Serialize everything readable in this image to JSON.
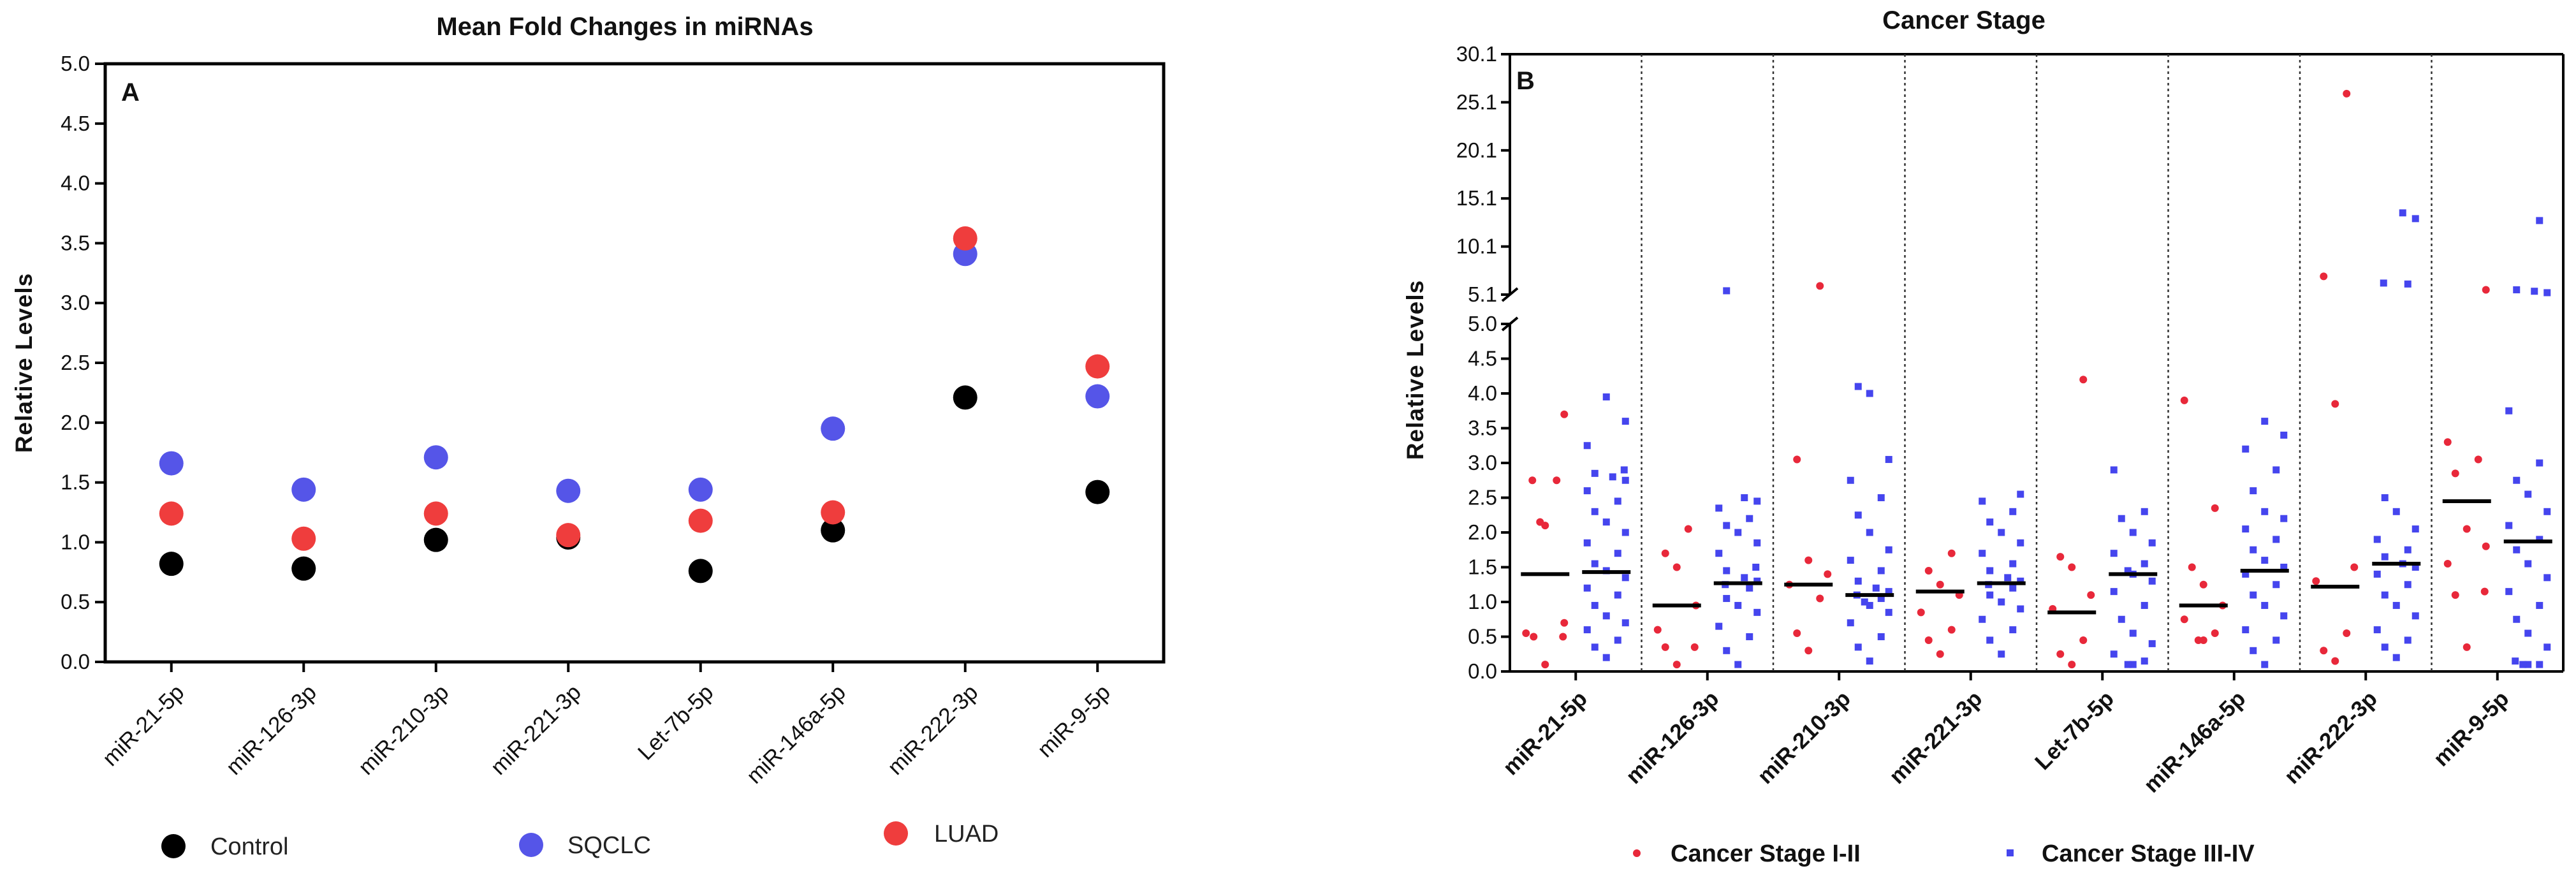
{
  "chart_data": [
    {
      "type": "scatter",
      "panel_label": "A",
      "title": "Mean Fold Changes in miRNAs",
      "ylabel": "Relative  Levels",
      "xlabel": "",
      "ylim": [
        0,
        5
      ],
      "yticks": [
        "0.0",
        "0.5",
        "1.0",
        "1.5",
        "2.0",
        "2.5",
        "3.0",
        "3.5",
        "4.0",
        "4.5",
        "5.0"
      ],
      "categories": [
        "miR-21-5p",
        "miR-126-3p",
        "miR-210-3p",
        "miR-221-3p",
        "Let-7b-5p",
        "miR-146a-5p",
        "miR-222-3p",
        "miR-9-5p"
      ],
      "series": [
        {
          "name": "Control",
          "color": "#000000",
          "values": [
            0.82,
            0.78,
            1.02,
            1.04,
            0.76,
            1.1,
            2.21,
            1.42
          ]
        },
        {
          "name": "SQCLC",
          "color": "#5555e8",
          "values": [
            1.66,
            1.44,
            1.71,
            1.43,
            1.44,
            1.95,
            3.41,
            2.22
          ]
        },
        {
          "name": "LUAD",
          "color": "#ef3d3d",
          "values": [
            1.24,
            1.03,
            1.24,
            1.06,
            1.18,
            1.25,
            3.54,
            2.47
          ]
        }
      ],
      "legend": [
        "Control",
        "SQCLC",
        "LUAD"
      ],
      "legend_placement": "bottom"
    },
    {
      "type": "scatter",
      "panel_label": "B",
      "title": "Cancer Stage",
      "ylabel": "Relative  Levels",
      "xlabel": "",
      "ylim_lower": [
        0,
        5
      ],
      "ylim_upper": [
        5.1,
        30.1
      ],
      "yticks_lower": [
        "0.0",
        "0.5",
        "1.0",
        "1.5",
        "2.0",
        "2.5",
        "3.0",
        "3.5",
        "4.0",
        "4.5",
        "5.0"
      ],
      "yticks_upper": [
        "5.1",
        "10.1",
        "15.1",
        "20.1",
        "25.1",
        "30.1"
      ],
      "categories": [
        "miR-21-5p",
        "miR-126-3p",
        "miR-210-3p",
        "miR-221-3p",
        "Let-7b-5p",
        "miR-146a-5p",
        "miR-222-3p",
        "miR-9-5p"
      ],
      "series": [
        {
          "name": "Cancer Stage I-II",
          "color": "#e8283a",
          "marker": "circle",
          "medians": [
            1.4,
            0.95,
            1.25,
            1.15,
            0.85,
            0.95,
            1.22,
            2.45
          ],
          "points": [
            [
              0.1,
              0.5,
              0.5,
              0.55,
              0.7,
              2.1,
              2.15,
              2.75,
              2.75,
              3.7
            ],
            [
              0.1,
              0.35,
              0.35,
              0.6,
              0.95,
              1.5,
              1.7,
              2.05
            ],
            [
              0.3,
              0.55,
              1.05,
              1.25,
              1.4,
              1.6,
              3.05,
              6.0
            ],
            [
              0.25,
              0.45,
              0.6,
              0.85,
              1.1,
              1.25,
              1.45,
              1.7
            ],
            [
              0.1,
              0.25,
              0.45,
              0.9,
              1.1,
              1.5,
              1.65,
              4.2
            ],
            [
              0.45,
              0.45,
              0.55,
              0.75,
              0.95,
              1.25,
              1.5,
              2.35,
              3.9
            ],
            [
              0.15,
              0.3,
              0.55,
              1.3,
              1.5,
              3.85,
              7.0,
              26.0
            ],
            [
              0.35,
              1.1,
              1.15,
              1.55,
              1.8,
              2.05,
              2.85,
              3.05,
              3.3,
              5.6
            ]
          ]
        },
        {
          "name": "Cancer Stage III-IV",
          "color": "#4545ee",
          "marker": "square",
          "medians": [
            1.43,
            1.27,
            1.1,
            1.27,
            1.4,
            1.45,
            1.55,
            1.87
          ],
          "points": [
            [
              0.2,
              0.35,
              0.45,
              0.6,
              0.7,
              0.8,
              0.95,
              1.1,
              1.2,
              1.35,
              1.45,
              1.55,
              1.7,
              1.85,
              2.0,
              2.15,
              2.3,
              2.45,
              2.6,
              2.75,
              2.8,
              2.85,
              2.9,
              3.25,
              3.6,
              3.95
            ],
            [
              0.1,
              0.3,
              0.5,
              0.65,
              0.85,
              0.95,
              1.05,
              1.2,
              1.25,
              1.3,
              1.35,
              1.45,
              1.5,
              1.7,
              1.85,
              2.0,
              2.1,
              2.2,
              2.35,
              2.45,
              2.5,
              5.5
            ],
            [
              0.15,
              0.35,
              0.5,
              0.7,
              0.85,
              0.95,
              1.0,
              1.05,
              1.1,
              1.15,
              1.2,
              1.3,
              1.45,
              1.6,
              1.75,
              2.0,
              2.25,
              2.5,
              2.75,
              3.05,
              4.0,
              4.1
            ],
            [
              0.25,
              0.45,
              0.6,
              0.75,
              0.9,
              1.0,
              1.1,
              1.2,
              1.25,
              1.3,
              1.35,
              1.45,
              1.55,
              1.7,
              1.85,
              2.0,
              2.15,
              2.3,
              2.45,
              2.55
            ],
            [
              0.1,
              0.1,
              0.15,
              0.25,
              0.4,
              0.55,
              0.75,
              0.95,
              1.15,
              1.3,
              1.4,
              1.45,
              1.55,
              1.7,
              1.85,
              2.0,
              2.2,
              2.3,
              2.9
            ],
            [
              0.1,
              0.3,
              0.45,
              0.6,
              0.8,
              0.95,
              1.1,
              1.25,
              1.4,
              1.5,
              1.6,
              1.75,
              1.9,
              2.05,
              2.2,
              2.3,
              2.6,
              2.9,
              3.2,
              3.4,
              3.6
            ],
            [
              0.2,
              0.35,
              0.45,
              0.6,
              0.8,
              0.95,
              1.1,
              1.25,
              1.4,
              1.5,
              1.55,
              1.65,
              1.75,
              1.9,
              2.05,
              2.3,
              2.5,
              6.2,
              6.3,
              13.0,
              13.6
            ],
            [
              0.1,
              0.1,
              0.1,
              0.15,
              0.35,
              0.55,
              0.75,
              0.95,
              1.15,
              1.35,
              1.55,
              1.75,
              1.9,
              2.1,
              2.3,
              2.55,
              2.75,
              3.0,
              3.75,
              5.3,
              5.45,
              5.6,
              12.8
            ]
          ]
        }
      ],
      "legend": [
        "Cancer Stage I-II",
        "Cancer Stage III-IV"
      ],
      "legend_placement": "bottom"
    }
  ]
}
